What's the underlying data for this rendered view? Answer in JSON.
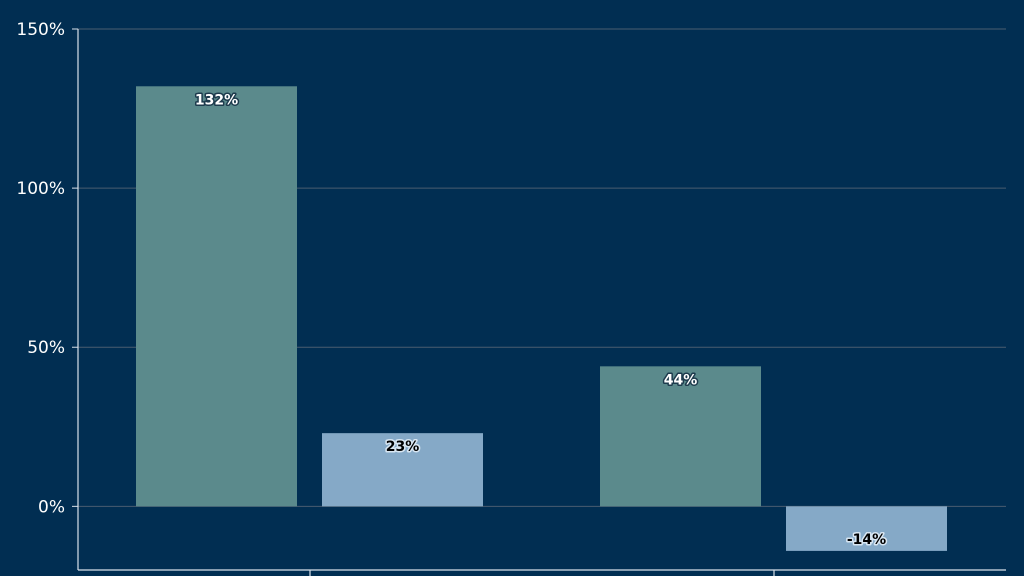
{
  "chart_data": {
    "type": "bar",
    "title": "",
    "xlabel": "",
    "ylabel": "",
    "categories": [
      "",
      ""
    ],
    "series": [
      {
        "values": [
          132,
          44
        ],
        "labels": [
          "132%",
          "44%"
        ],
        "color": "#5b8a8c",
        "label_color": "#ffffff",
        "label_halo": "#1d3b4d"
      },
      {
        "values": [
          23,
          -14
        ],
        "labels": [
          "23%",
          "-14%"
        ],
        "color": "#85a9c7",
        "label_color": "#000000",
        "label_halo": "#d8e6f2"
      }
    ],
    "ylim": [
      -20,
      150
    ],
    "yticks": [
      0,
      50,
      100,
      150
    ],
    "ytick_labels": [
      "0%",
      "50%",
      "100%",
      "150%"
    ],
    "grid": true,
    "legend": "none",
    "background": "#012e52",
    "gridline_color": "#4a5d70",
    "axis_color": "#d9e1ea"
  }
}
